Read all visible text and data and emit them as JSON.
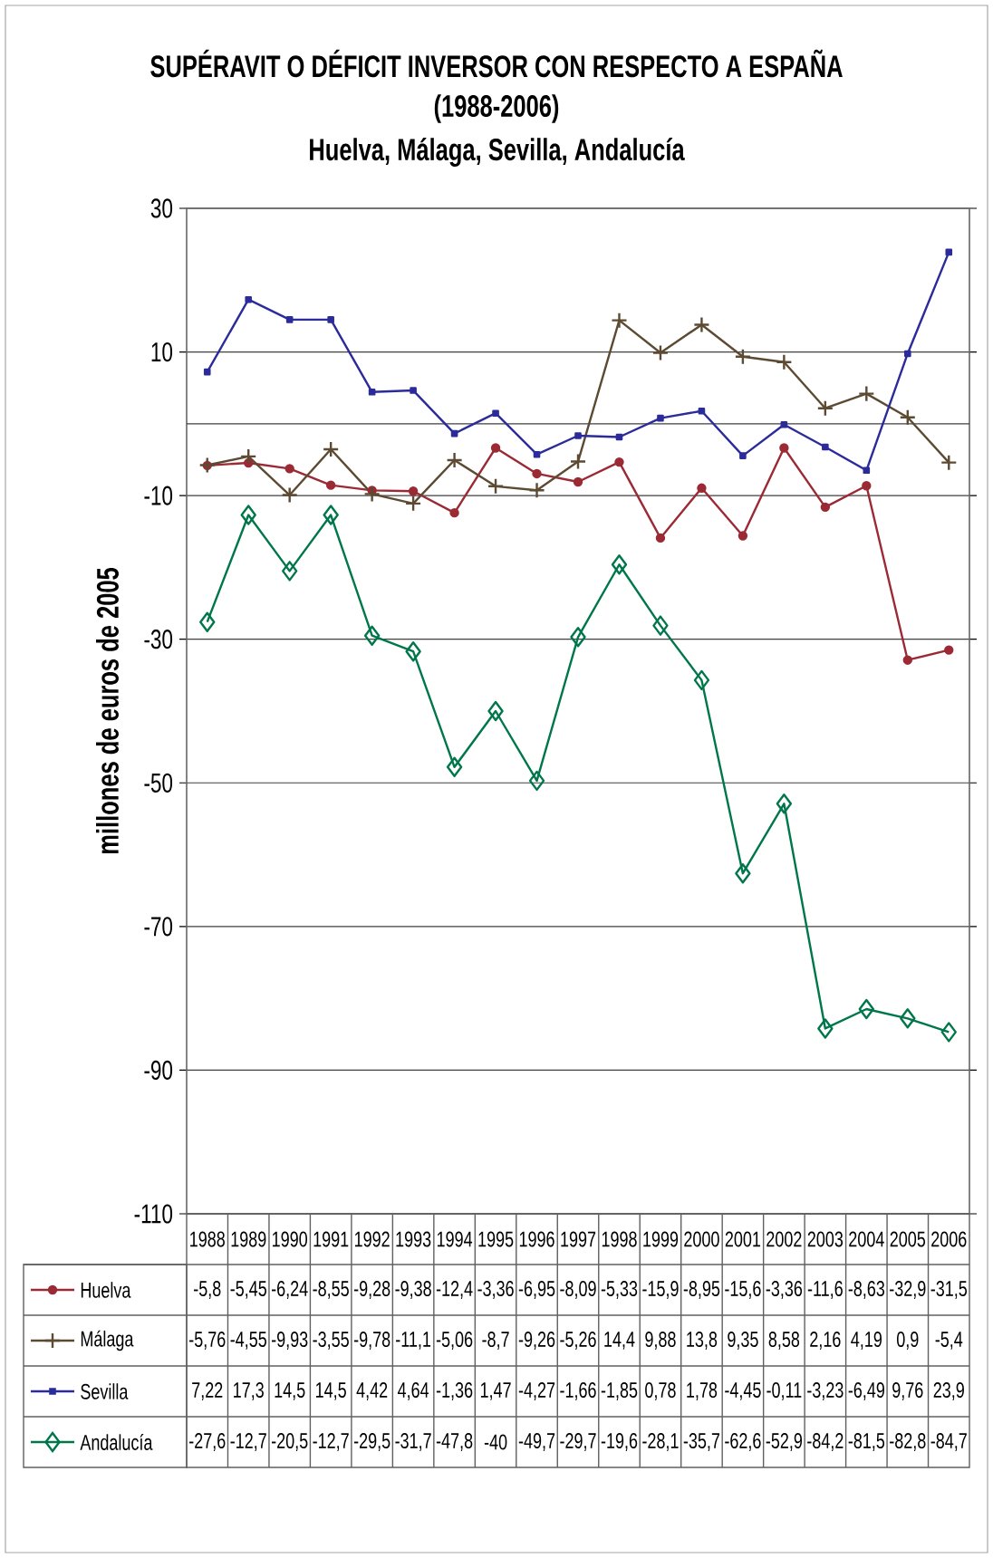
{
  "chart_data": {
    "type": "line",
    "title": "SUPÉRAVIT O DÉFICIT INVERSOR CON RESPECTO A ESPAÑA",
    "subtitle": "(1988-2006)",
    "annotations": [
      "Huelva, Málaga, Sevilla, Andalucía"
    ],
    "ylabel": "millones de euros de 2005",
    "categories": [
      "1988",
      "1989",
      "1990",
      "1991",
      "1992",
      "1993",
      "1994",
      "1995",
      "1996",
      "1997",
      "1998",
      "1999",
      "2000",
      "2001",
      "2002",
      "2003",
      "2004",
      "2005",
      "2006"
    ],
    "series": [
      {
        "name": "Huelva",
        "color": "#9b2a35",
        "marker": "circle",
        "values": [
          -5.8,
          -5.45,
          -6.24,
          -8.55,
          -9.28,
          -9.38,
          -12.4,
          -3.36,
          -6.95,
          -8.09,
          -5.33,
          -15.9,
          -8.95,
          -15.6,
          -3.36,
          -11.6,
          -8.63,
          -32.9,
          -31.5
        ],
        "value_labels": [
          "-5,8",
          "-5,45",
          "-6,24",
          "-8,55",
          "-9,28",
          "-9,38",
          "-12,4",
          "-3,36",
          "-6,95",
          "-8,09",
          "-5,33",
          "-15,9",
          "-8,95",
          "-15,6",
          "-3,36",
          "-11,6",
          "-8,63",
          "-32,9",
          "-31,5"
        ]
      },
      {
        "name": "Málaga",
        "color": "#5c4a32",
        "marker": "cross",
        "values": [
          -5.76,
          -4.55,
          -9.93,
          -3.55,
          -9.78,
          -11.1,
          -5.06,
          -8.7,
          -9.26,
          -5.26,
          14.4,
          9.88,
          13.8,
          9.35,
          8.58,
          2.16,
          4.19,
          0.9,
          -5.4
        ],
        "value_labels": [
          "-5,76",
          "-4,55",
          "-9,93",
          "-3,55",
          "-9,78",
          "-11,1",
          "-5,06",
          "-8,7",
          "-9,26",
          "-5,26",
          "14,4",
          "9,88",
          "13,8",
          "9,35",
          "8,58",
          "2,16",
          "4,19",
          "0,9",
          "-5,4"
        ]
      },
      {
        "name": "Sevilla",
        "color": "#2b2b9b",
        "marker": "square",
        "values": [
          7.22,
          17.3,
          14.5,
          14.5,
          4.42,
          4.64,
          -1.36,
          1.47,
          -4.27,
          -1.66,
          -1.85,
          0.78,
          1.78,
          -4.45,
          -0.11,
          -3.23,
          -6.49,
          9.76,
          23.9
        ],
        "value_labels": [
          "7,22",
          "17,3",
          "14,5",
          "14,5",
          "4,42",
          "4,64",
          "-1,36",
          "1,47",
          "-4,27",
          "-1,66",
          "-1,85",
          "0,78",
          "1,78",
          "-4,45",
          "-0,11",
          "-3,23",
          "-6,49",
          "9,76",
          "23,9"
        ]
      },
      {
        "name": "Andalucía",
        "color": "#00774a",
        "marker": "diamond",
        "values": [
          -27.6,
          -12.7,
          -20.5,
          -12.7,
          -29.5,
          -31.7,
          -47.8,
          -40,
          -49.7,
          -29.7,
          -19.6,
          -28.1,
          -35.7,
          -62.6,
          -52.9,
          -84.2,
          -81.5,
          -82.8,
          -84.7
        ],
        "value_labels": [
          "-27,6",
          "-12,7",
          "-20,5",
          "-12,7",
          "-29,5",
          "-31,7",
          "-47,8",
          "-40",
          "-49,7",
          "-29,7",
          "-19,6",
          "-28,1",
          "-35,7",
          "-62,6",
          "-52,9",
          "-84,2",
          "-81,5",
          "-82,8",
          "-84,7"
        ]
      }
    ],
    "ylim": [
      -110,
      30
    ],
    "yticks": [
      30,
      10,
      -10,
      -30,
      -50,
      -70,
      -90,
      -110
    ],
    "grid": "y",
    "ref_lines": [
      {
        "axis": "y",
        "value": 0
      }
    ],
    "legend": "bottom left"
  }
}
